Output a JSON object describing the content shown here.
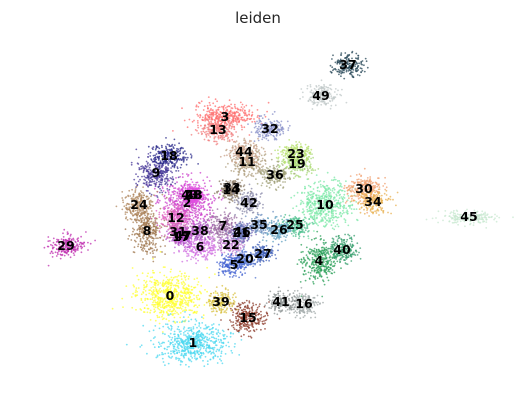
{
  "chart_data": {
    "type": "scatter",
    "title": "leiden",
    "xlabel": "",
    "ylabel": "",
    "grid": false,
    "axes_visible": false,
    "legend": "on data",
    "series": [
      {
        "name": "0",
        "centroid": [
          170,
          296
        ],
        "spread": [
          30,
          20
        ],
        "color": "#ffff33"
      },
      {
        "name": "1",
        "centroid": [
          193,
          343
        ],
        "spread": [
          32,
          18
        ],
        "color": "#4dd8f0"
      },
      {
        "name": "2",
        "centroid": [
          187,
          203
        ],
        "spread": [
          22,
          22
        ],
        "color": "#cc44cc"
      },
      {
        "name": "3",
        "centroid": [
          225,
          117
        ],
        "spread": [
          28,
          12
        ],
        "color": "#ff6f6f"
      },
      {
        "name": "4",
        "centroid": [
          319,
          261
        ],
        "spread": [
          16,
          18
        ],
        "color": "#2ca05a"
      },
      {
        "name": "5",
        "centroid": [
          234,
          265
        ],
        "spread": [
          14,
          10
        ],
        "color": "#3f5fd0"
      },
      {
        "name": "6",
        "centroid": [
          200,
          247
        ],
        "spread": [
          16,
          12
        ],
        "color": "#d070e0"
      },
      {
        "name": "7",
        "centroid": [
          223,
          226
        ],
        "spread": [
          14,
          12
        ],
        "color": "#9a6aa0"
      },
      {
        "name": "8",
        "centroid": [
          147,
          231
        ],
        "spread": [
          14,
          20
        ],
        "color": "#a07850"
      },
      {
        "name": "9",
        "centroid": [
          156,
          173
        ],
        "spread": [
          16,
          16
        ],
        "color": "#4a3a9a"
      },
      {
        "name": "10",
        "centroid": [
          325,
          205
        ],
        "spread": [
          24,
          20
        ],
        "color": "#7ee8a8"
      },
      {
        "name": "11",
        "centroid": [
          247,
          162
        ],
        "spread": [
          16,
          12
        ],
        "color": "#b0a080"
      },
      {
        "name": "12",
        "centroid": [
          176,
          218
        ],
        "spread": [
          14,
          12
        ],
        "color": "#e060c0"
      },
      {
        "name": "13",
        "centroid": [
          218,
          130
        ],
        "spread": [
          16,
          10
        ],
        "color": "#f08080"
      },
      {
        "name": "14",
        "centroid": [
          231,
          190
        ],
        "spread": [
          10,
          8
        ],
        "color": "#8a7a60"
      },
      {
        "name": "15",
        "centroid": [
          248,
          318
        ],
        "spread": [
          16,
          14
        ],
        "color": "#8b3a2a"
      },
      {
        "name": "16",
        "centroid": [
          304,
          304
        ],
        "spread": [
          14,
          10
        ],
        "color": "#a0a8a8"
      },
      {
        "name": "17",
        "centroid": [
          181,
          237
        ],
        "spread": [
          10,
          8
        ],
        "color": "#b05ad0"
      },
      {
        "name": "18",
        "centroid": [
          169,
          156
        ],
        "spread": [
          16,
          12
        ],
        "color": "#2a2a8a"
      },
      {
        "name": "19",
        "centroid": [
          297,
          164
        ],
        "spread": [
          14,
          10
        ],
        "color": "#a8d878"
      },
      {
        "name": "20",
        "centroid": [
          245,
          259
        ],
        "spread": [
          10,
          8
        ],
        "color": "#5a7ad0"
      },
      {
        "name": "21",
        "centroid": [
          241,
          233
        ],
        "spread": [
          10,
          8
        ],
        "color": "#7a68b8"
      },
      {
        "name": "22",
        "centroid": [
          231,
          245
        ],
        "spread": [
          10,
          8
        ],
        "color": "#c080d0"
      },
      {
        "name": "23",
        "centroid": [
          296,
          154
        ],
        "spread": [
          14,
          10
        ],
        "color": "#b8e070"
      },
      {
        "name": "24",
        "centroid": [
          139,
          205
        ],
        "spread": [
          14,
          14
        ],
        "color": "#b08860"
      },
      {
        "name": "25",
        "centroid": [
          295,
          225
        ],
        "spread": [
          12,
          10
        ],
        "color": "#50c090"
      },
      {
        "name": "26",
        "centroid": [
          279,
          230
        ],
        "spread": [
          12,
          10
        ],
        "color": "#60a0c0"
      },
      {
        "name": "27",
        "centroid": [
          263,
          254
        ],
        "spread": [
          10,
          8
        ],
        "color": "#4060b8"
      },
      {
        "name": "28",
        "centroid": [
          193,
          195
        ],
        "spread": [
          10,
          8
        ],
        "color": "#e040e0"
      },
      {
        "name": "29",
        "centroid": [
          66,
          246
        ],
        "spread": [
          16,
          10
        ],
        "color": "#c030b0"
      },
      {
        "name": "30",
        "centroid": [
          364,
          189
        ],
        "spread": [
          16,
          12
        ],
        "color": "#f0a070"
      },
      {
        "name": "31",
        "centroid": [
          178,
          232
        ],
        "spread": [
          10,
          8
        ],
        "color": "#c868b0"
      },
      {
        "name": "32",
        "centroid": [
          270,
          129
        ],
        "spread": [
          14,
          10
        ],
        "color": "#8890c8"
      },
      {
        "name": "33",
        "centroid": [
          232,
          188
        ],
        "spread": [
          10,
          8
        ],
        "color": "#908070"
      },
      {
        "name": "34",
        "centroid": [
          373,
          202
        ],
        "spread": [
          14,
          10
        ],
        "color": "#e8b050"
      },
      {
        "name": "35",
        "centroid": [
          259,
          225
        ],
        "spread": [
          10,
          8
        ],
        "color": "#7090c0"
      },
      {
        "name": "36",
        "centroid": [
          275,
          175
        ],
        "spread": [
          14,
          10
        ],
        "color": "#a0a078"
      },
      {
        "name": "37",
        "centroid": [
          348,
          65
        ],
        "spread": [
          14,
          10
        ],
        "color": "#284858"
      },
      {
        "name": "38",
        "centroid": [
          200,
          231
        ],
        "spread": [
          10,
          8
        ],
        "color": "#a858c0"
      },
      {
        "name": "39",
        "centroid": [
          221,
          302
        ],
        "spread": [
          12,
          10
        ],
        "color": "#d8c040"
      },
      {
        "name": "40",
        "centroid": [
          342,
          250
        ],
        "spread": [
          14,
          12
        ],
        "color": "#3aa070"
      },
      {
        "name": "41",
        "centroid": [
          281,
          302
        ],
        "spread": [
          12,
          8
        ],
        "color": "#8a9090"
      },
      {
        "name": "42",
        "centroid": [
          249,
          203
        ],
        "spread": [
          12,
          10
        ],
        "color": "#8888a8"
      },
      {
        "name": "43",
        "centroid": [
          190,
          195
        ],
        "spread": [
          8,
          8
        ],
        "color": "#d858d8"
      },
      {
        "name": "44",
        "centroid": [
          244,
          152
        ],
        "spread": [
          14,
          10
        ],
        "color": "#c8a088"
      },
      {
        "name": "45",
        "centroid": [
          469,
          217
        ],
        "spread": [
          26,
          6
        ],
        "color": "#c8e8d0"
      },
      {
        "name": "46",
        "centroid": [
          242,
          232
        ],
        "spread": [
          8,
          8
        ],
        "color": "#6878b8"
      },
      {
        "name": "47",
        "centroid": [
          183,
          236
        ],
        "spread": [
          8,
          8
        ],
        "color": "#b850c8"
      },
      {
        "name": "48",
        "centroid": [
          194,
          195
        ],
        "spread": [
          8,
          8
        ],
        "color": "#e050e0"
      },
      {
        "name": "49",
        "centroid": [
          321,
          96
        ],
        "spread": [
          14,
          10
        ],
        "color": "#c0c8c8"
      }
    ]
  }
}
